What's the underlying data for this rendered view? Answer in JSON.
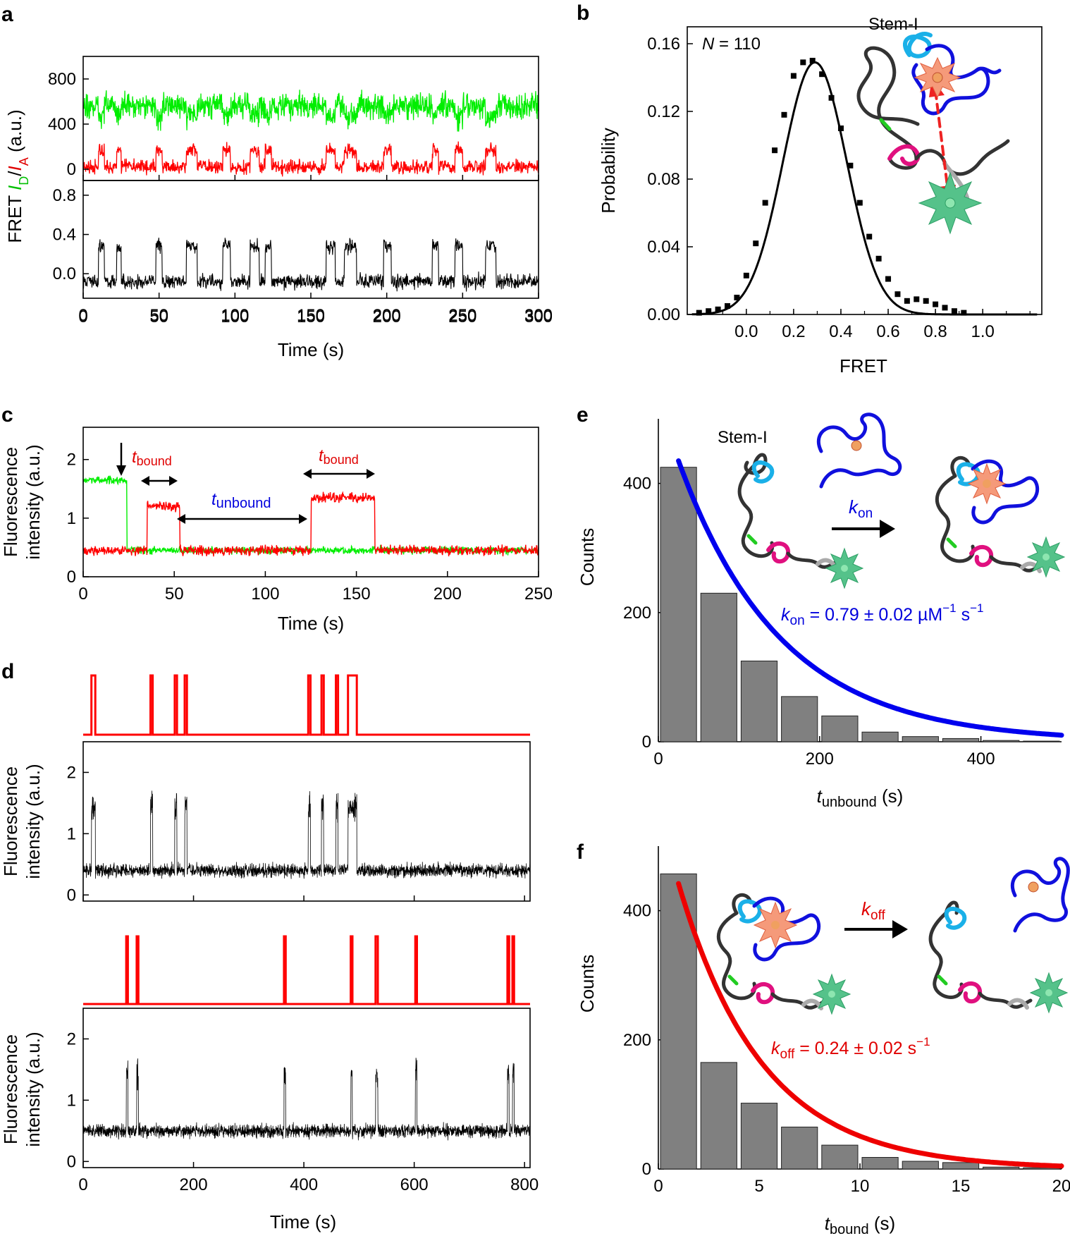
{
  "panels": {
    "a": "a",
    "b": "b",
    "c": "c",
    "d": "d",
    "e": "e",
    "f": "f"
  },
  "colors": {
    "donor": "#00ee00",
    "acceptor": "#ff0000",
    "fret": "#000000",
    "bars": "#808080",
    "kon_fit": "#0000ee",
    "koff_fit": "#ee0000",
    "stem_loop_cyan": "#1ab0e8",
    "ligand_blue": "#1010dd",
    "pink": "#e0107f",
    "donor_star": "#55c28a",
    "acceptor_star": "#f59a7a"
  },
  "chart_data": [
    {
      "id": "a",
      "type": "line",
      "title": "",
      "xlabel": "Time (s)",
      "ylabel_parts": [
        "FRET ",
        "I",
        "D",
        "/",
        "I",
        "A",
        " (a.u.)"
      ],
      "x_ticks": [
        0,
        50,
        100,
        150,
        200,
        250,
        300
      ],
      "xlim": [
        0,
        300
      ],
      "top": {
        "y_ticks": [
          0,
          400,
          800
        ],
        "ylim": [
          -100,
          1000
        ],
        "series": [
          {
            "color_key": "donor",
            "baseline": 560,
            "low": 470,
            "noise": 160
          },
          {
            "color_key": "acceptor",
            "baseline": 20,
            "high": 170,
            "noise": 90
          }
        ]
      },
      "bottom": {
        "y_ticks": [
          0.0,
          0.4,
          0.8
        ],
        "ylim": [
          -0.25,
          0.95
        ],
        "series": [
          {
            "color_key": "fret",
            "baseline": -0.08,
            "high": 0.28,
            "noise": 0.11
          }
        ]
      },
      "high_intervals": [
        [
          10,
          14
        ],
        [
          22,
          25
        ],
        [
          48,
          52
        ],
        [
          68,
          75
        ],
        [
          92,
          97
        ],
        [
          110,
          116
        ],
        [
          120,
          124
        ],
        [
          160,
          166
        ],
        [
          172,
          180
        ],
        [
          198,
          203
        ],
        [
          230,
          234
        ],
        [
          245,
          250
        ],
        [
          265,
          272
        ]
      ]
    },
    {
      "id": "b",
      "type": "scatter",
      "xlabel": "FRET",
      "ylabel": "Probability",
      "annotation": {
        "N": "N",
        "eq": " = 110"
      },
      "inset_label": "Stem-I",
      "x_ticks": [
        0.0,
        0.2,
        0.4,
        0.6,
        0.8,
        1.0
      ],
      "xlim": [
        -0.25,
        1.25
      ],
      "y_ticks": [
        0.0,
        0.04,
        0.08,
        0.12,
        0.16
      ],
      "ylim": [
        0,
        0.17
      ],
      "x": [
        -0.2,
        -0.16,
        -0.12,
        -0.08,
        -0.04,
        0.0,
        0.04,
        0.08,
        0.12,
        0.16,
        0.2,
        0.24,
        0.28,
        0.32,
        0.36,
        0.4,
        0.44,
        0.48,
        0.52,
        0.56,
        0.6,
        0.64,
        0.68,
        0.72,
        0.76,
        0.8,
        0.84,
        0.88,
        0.92
      ],
      "y": [
        0.001,
        0.002,
        0.003,
        0.005,
        0.01,
        0.023,
        0.042,
        0.066,
        0.097,
        0.118,
        0.141,
        0.149,
        0.15,
        0.142,
        0.128,
        0.11,
        0.088,
        0.066,
        0.046,
        0.033,
        0.021,
        0.012,
        0.008,
        0.009,
        0.008,
        0.006,
        0.004,
        0.002,
        0.001
      ],
      "fit": {
        "type": "gaussian",
        "A": 0.149,
        "mu": 0.29,
        "sigma": 0.135
      }
    },
    {
      "id": "c",
      "type": "line",
      "xlabel": "Time (s)",
      "ylabel": [
        "Fluorescence",
        "intensity (a.u.)"
      ],
      "x_ticks": [
        0,
        50,
        100,
        150,
        200,
        250
      ],
      "xlim": [
        0,
        250
      ],
      "y_ticks": [
        0,
        1,
        2
      ],
      "ylim": [
        0,
        2.55
      ],
      "series": [
        {
          "color_key": "donor",
          "segments": [
            [
              0,
              24,
              1.65
            ],
            [
              24,
              250,
              0.45
            ]
          ],
          "noise": 0.09
        },
        {
          "color_key": "acceptor",
          "segments": [
            [
              0,
              35,
              0.45
            ],
            [
              35,
              53,
              1.2
            ],
            [
              53,
              125,
              0.45
            ],
            [
              125,
              160,
              1.35
            ],
            [
              160,
              250,
              0.45
            ]
          ],
          "noise": 0.12
        }
      ],
      "labels": {
        "t": "t",
        "bound": "bound",
        "unbound": "unbound"
      }
    },
    {
      "id": "d1",
      "type": "line",
      "xlabel": "",
      "ylabel": [
        "Fluorescence",
        "intensity (a.u.)"
      ],
      "x_ticks": [
        0,
        200,
        400,
        600,
        800
      ],
      "xlim": [
        0,
        810
      ],
      "y_ticks": [
        0,
        1,
        2
      ],
      "ylim": [
        -0.1,
        2.5
      ],
      "baseline": 0.4,
      "noise": 0.16,
      "spikes": [
        [
          15,
          22
        ],
        [
          122,
          126
        ],
        [
          166,
          170
        ],
        [
          184,
          188
        ],
        [
          408,
          412
        ],
        [
          432,
          436
        ],
        [
          458,
          462
        ],
        [
          480,
          496
        ]
      ]
    },
    {
      "id": "d2",
      "type": "line",
      "xlabel": "Time (s)",
      "ylabel": [
        "Fluorescence",
        "intensity (a.u.)"
      ],
      "x_ticks": [
        0,
        200,
        400,
        600,
        800
      ],
      "xlim": [
        0,
        810
      ],
      "y_ticks": [
        0,
        1,
        2
      ],
      "ylim": [
        -0.1,
        2.5
      ],
      "baseline": 0.5,
      "noise": 0.16,
      "spikes": [
        [
          78,
          81
        ],
        [
          97,
          100
        ],
        [
          364,
          367
        ],
        [
          485,
          488
        ],
        [
          530,
          534
        ],
        [
          602,
          605
        ],
        [
          769,
          772
        ],
        [
          778,
          781
        ]
      ]
    },
    {
      "id": "e",
      "type": "bar",
      "xlabel": [
        "t",
        "unbound",
        " (s)"
      ],
      "ylabel": "Counts",
      "x_ticks": [
        0,
        200,
        400
      ],
      "xlim": [
        0,
        500
      ],
      "y_ticks": [
        0,
        200,
        400
      ],
      "ylim": [
        0,
        500
      ],
      "bin_width": 50,
      "bin_starts": [
        0,
        50,
        100,
        150,
        200,
        250,
        300,
        350,
        400,
        450
      ],
      "values": [
        425,
        230,
        125,
        70,
        40,
        15,
        8,
        5,
        2,
        1
      ],
      "fit": {
        "type": "exp",
        "A": 530,
        "k": 0.0079,
        "x0": 25
      },
      "inset_label": "Stem-I",
      "rate_label": [
        "k",
        "on",
        " = 0.79 ± 0.02 µM",
        "−1",
        " s",
        "−1"
      ]
    },
    {
      "id": "f",
      "type": "bar",
      "xlabel": [
        "t",
        "bound",
        " (s)"
      ],
      "ylabel": "Counts",
      "x_ticks": [
        0,
        5,
        10,
        15,
        20
      ],
      "xlim": [
        0,
        20
      ],
      "y_ticks": [
        0,
        200,
        400
      ],
      "ylim": [
        0,
        500
      ],
      "bin_width": 2,
      "bin_starts": [
        0,
        2,
        4,
        6,
        8,
        10,
        12,
        14,
        16,
        18
      ],
      "values": [
        457,
        165,
        102,
        65,
        37,
        18,
        12,
        10,
        3,
        2
      ],
      "fit": {
        "type": "exp",
        "A": 562,
        "k": 0.24,
        "x0": 1
      },
      "rate_label": [
        "k",
        "off",
        " = 0.24 ± 0.02 s",
        "−1"
      ]
    }
  ]
}
